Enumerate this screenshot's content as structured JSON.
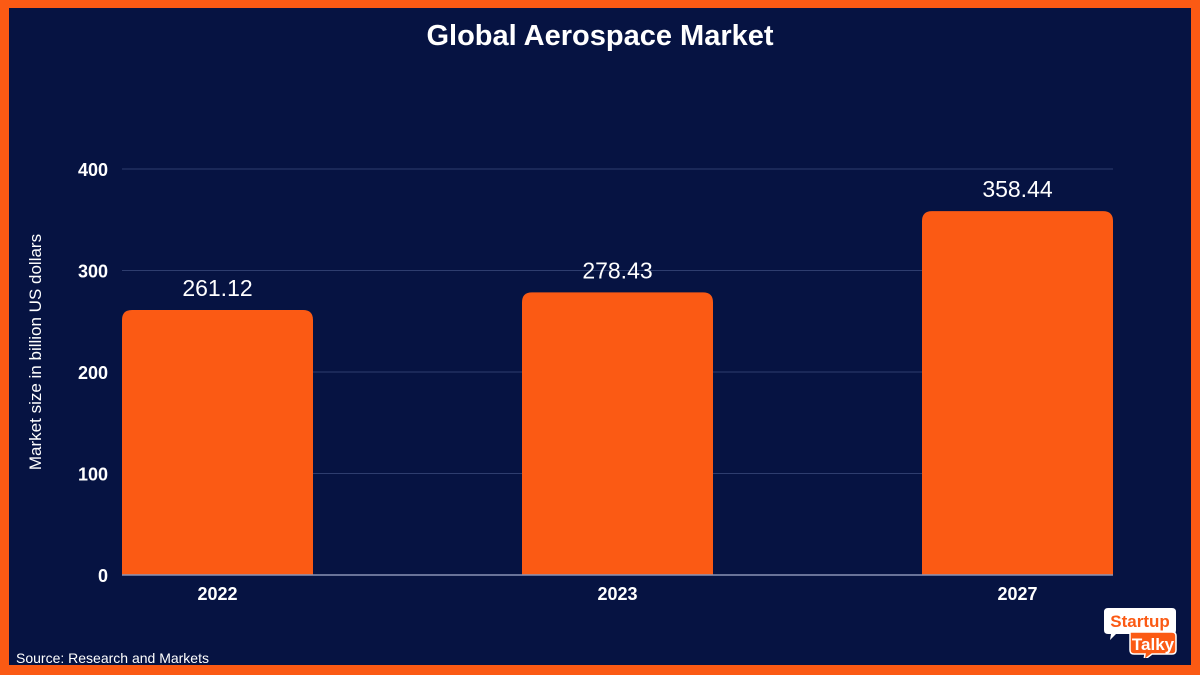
{
  "chart_data": {
    "type": "bar",
    "title": "Global Aerospace Market",
    "xlabel": "",
    "ylabel": "Market size in billion US dollars",
    "categories": [
      "2022",
      "2023",
      "2027"
    ],
    "values": [
      261.12,
      278.43,
      358.44
    ],
    "value_labels": [
      "261.12",
      "278.43",
      "358.44"
    ],
    "ylim": [
      0,
      400
    ],
    "yticks": [
      0,
      100,
      200,
      300,
      400
    ],
    "grid": true,
    "bar_color": "#fb5a14",
    "background_color": "#061342"
  },
  "source": "Source: Research and Markets",
  "logo": {
    "line1": "Startup",
    "line2": "Talky"
  }
}
